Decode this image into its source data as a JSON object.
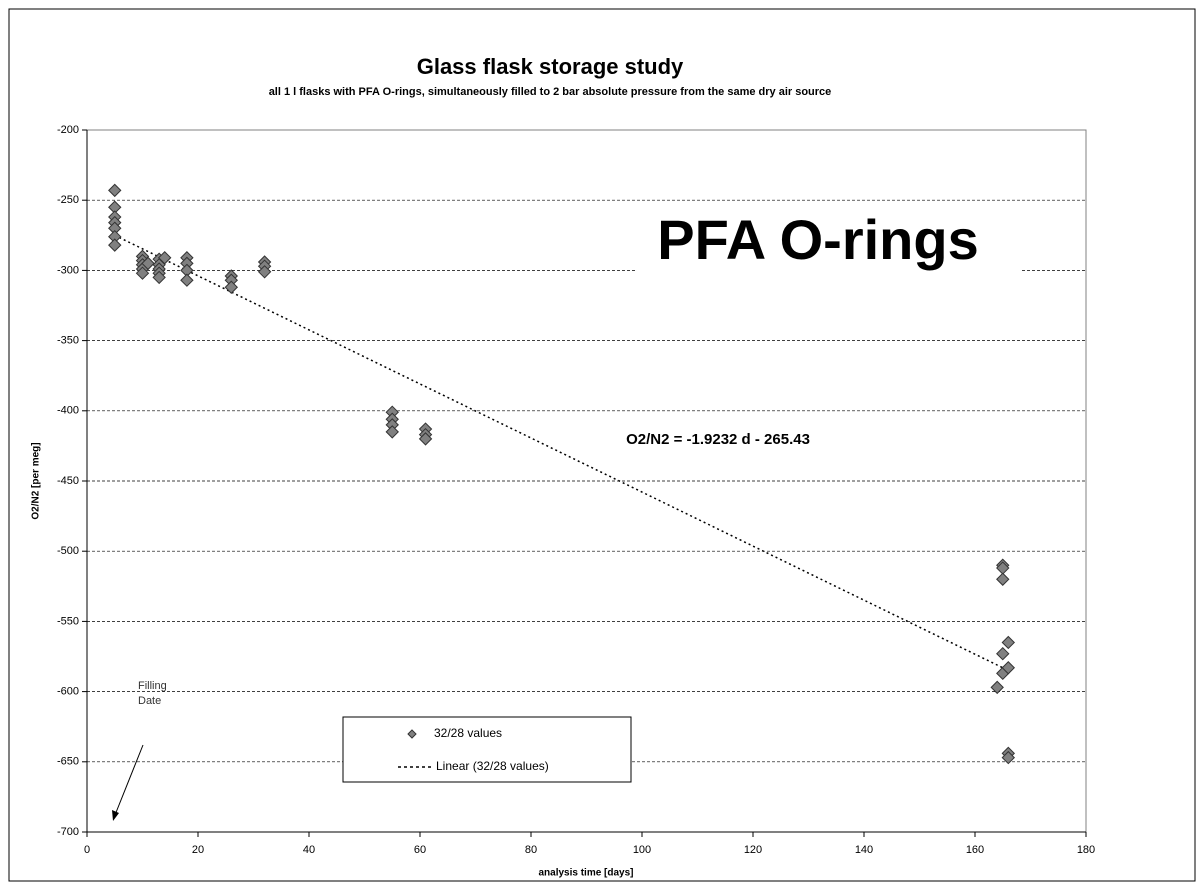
{
  "chart_data": {
    "type": "scatter",
    "title": "Glass flask storage study",
    "subtitle": "all 1 l flasks with PFA O-rings, simultaneously filled to 2 bar absolute pressure from the same dry air source",
    "x_label": "analysis time [days]",
    "y_label": "O2/N2 [per meg]",
    "x": [
      5,
      5,
      5,
      5,
      5,
      5,
      5,
      10,
      10,
      10,
      10,
      10,
      11,
      13,
      13,
      13,
      13,
      13,
      14,
      18,
      18,
      18,
      18,
      26,
      26,
      26,
      32,
      32,
      32,
      55,
      55,
      55,
      55,
      61,
      61,
      61,
      164,
      165,
      165,
      165,
      165,
      165,
      166,
      166,
      166,
      166
    ],
    "series": [
      {
        "name": "32/28 values",
        "color": "#808080",
        "values": [
          -243,
          -255,
          -262,
          -266,
          -270,
          -276,
          -282,
          -290,
          -293,
          -296,
          -299,
          -302,
          -295,
          -292,
          -296,
          -299,
          -302,
          -305,
          -291,
          -291,
          -295,
          -300,
          -307,
          -304,
          -307,
          -312,
          -294,
          -297,
          -301,
          -401,
          -406,
          -410,
          -415,
          -413,
          -417,
          -420,
          -597,
          -510,
          -512,
          -520,
          -573,
          -587,
          -565,
          -583,
          -644,
          -647
        ]
      }
    ],
    "trendline": {
      "name": "Linear (32/28 values)",
      "color": "#000000",
      "x": [
        5,
        165
      ],
      "values": [
        -275,
        -583
      ]
    },
    "annotations": [
      "PFA O-rings",
      "O2/N2 = -1.9232 d - 265.43",
      "Filling",
      "Date"
    ],
    "xlim": [
      0,
      180
    ],
    "xticks": [
      0,
      20,
      40,
      60,
      80,
      100,
      120,
      140,
      160,
      180
    ],
    "ylim": [
      -700,
      -200
    ],
    "yticks": [
      -200,
      -250,
      -300,
      -350,
      -400,
      -450,
      -500,
      -550,
      -600,
      -650,
      -700
    ],
    "grid": true
  }
}
